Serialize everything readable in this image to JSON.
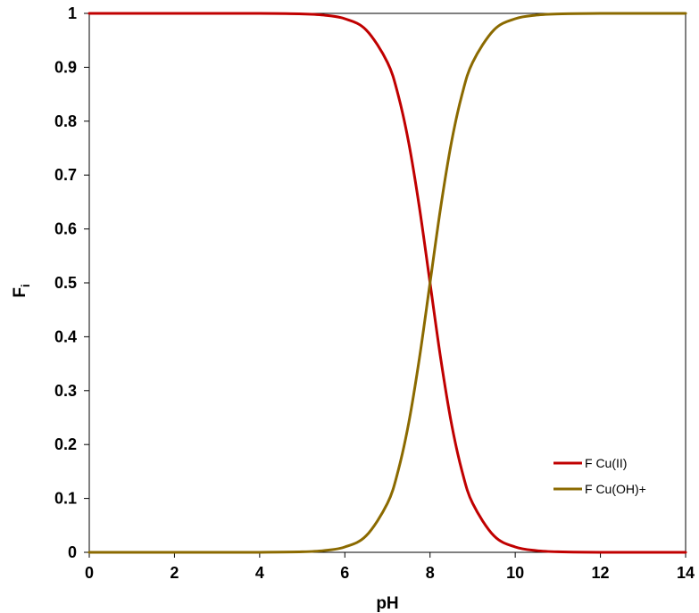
{
  "chart_data": {
    "type": "line",
    "xlabel": "pH",
    "ylabel_main": "F",
    "ylabel_sub": "i",
    "xlim": [
      0,
      14
    ],
    "ylim": [
      0,
      1
    ],
    "x_ticks": [
      0,
      2,
      4,
      6,
      8,
      10,
      12,
      14
    ],
    "y_ticks": [
      0,
      0.1,
      0.2,
      0.3,
      0.4,
      0.5,
      0.6,
      0.7,
      0.8,
      0.9,
      1
    ],
    "grid": false,
    "legend_position": "bottom-right",
    "x": [
      0,
      1,
      2,
      3,
      4,
      5,
      5.5,
      6,
      6.5,
      7,
      7.25,
      7.5,
      7.75,
      8,
      8.25,
      8.5,
      8.75,
      9,
      9.5,
      10,
      10.5,
      11,
      12,
      13,
      14
    ],
    "series": [
      {
        "name": "F Cu(II)",
        "color": "#c00000",
        "values": [
          1,
          1,
          1,
          1,
          0.9999,
          0.999,
          0.9968,
          0.9901,
          0.9693,
          0.9091,
          0.8491,
          0.7597,
          0.6401,
          0.5,
          0.3599,
          0.2403,
          0.1509,
          0.0909,
          0.0307,
          0.0099,
          0.0032,
          0.001,
          0.0001,
          0,
          0
        ]
      },
      {
        "name": "F Cu(OH)+",
        "color": "#8b6a00",
        "values": [
          0,
          0,
          0,
          0,
          0.0001,
          0.001,
          0.0032,
          0.0099,
          0.0307,
          0.0909,
          0.1509,
          0.2403,
          0.3599,
          0.5,
          0.6401,
          0.7597,
          0.8491,
          0.9091,
          0.9693,
          0.9901,
          0.9968,
          0.999,
          0.9999,
          1,
          1
        ]
      }
    ]
  }
}
